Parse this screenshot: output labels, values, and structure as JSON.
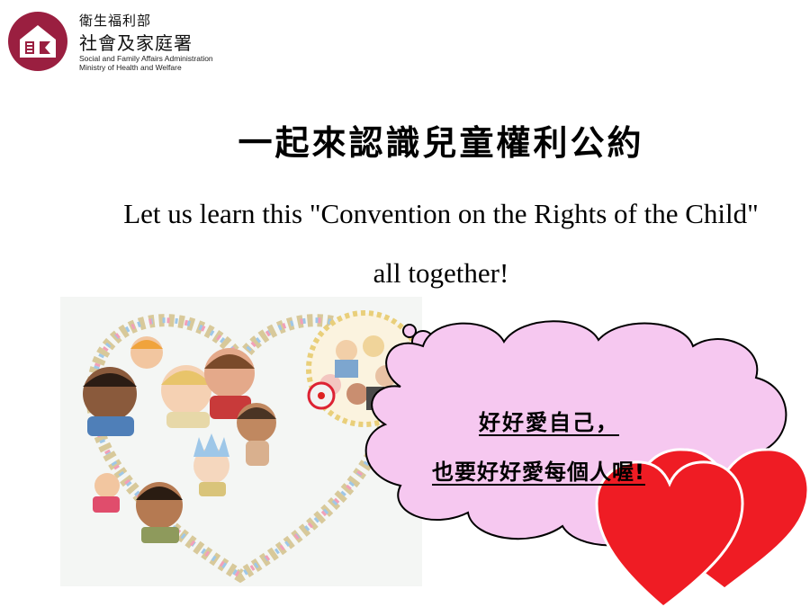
{
  "logo": {
    "org_zh_line1": "衛生福利部",
    "org_zh_line2": "社會及家庭署",
    "org_en_line1": "Social and Family Affairs Administration",
    "org_en_line2": "Ministry of Health and Welfare",
    "brand_color": "#9a1f40"
  },
  "title": {
    "zh": "一起來認識兒童權利公約",
    "en": "Let us learn this \"Convention on the Rights of the Child\" all together!"
  },
  "bubble": {
    "line1": "好好愛自己，",
    "line2": "也要好好愛每個人喔!",
    "fill_color": "#f6c8f0"
  },
  "hearts": {
    "color": "#ef1c24"
  }
}
